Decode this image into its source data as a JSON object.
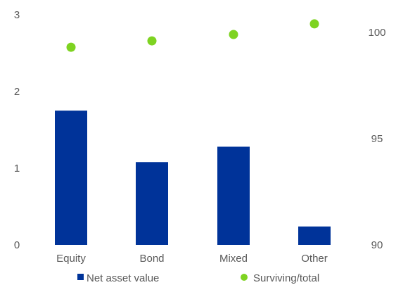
{
  "chart_data": {
    "type": "bar",
    "title": "",
    "xlabel": "",
    "ylabel": "",
    "categories": [
      "Equity",
      "Bond",
      "Mixed",
      "Other"
    ],
    "series": [
      {
        "name": "Net asset value",
        "type": "bar",
        "axis": "left",
        "values": [
          1.75,
          1.08,
          1.28,
          0.24
        ],
        "color": "#003399"
      },
      {
        "name": "Surviving/total",
        "type": "scatter",
        "axis": "right",
        "values": [
          99.3,
          99.6,
          99.9,
          100.4
        ],
        "color": "#7ed321"
      }
    ],
    "y_left": {
      "ylim": [
        0,
        3
      ],
      "ticks": [
        "0",
        "1",
        "2",
        "3"
      ]
    },
    "y_right": {
      "ylim": [
        90,
        101
      ],
      "ticks": [
        "90",
        "95",
        "100"
      ]
    },
    "grid": false,
    "legend": "bottom"
  }
}
